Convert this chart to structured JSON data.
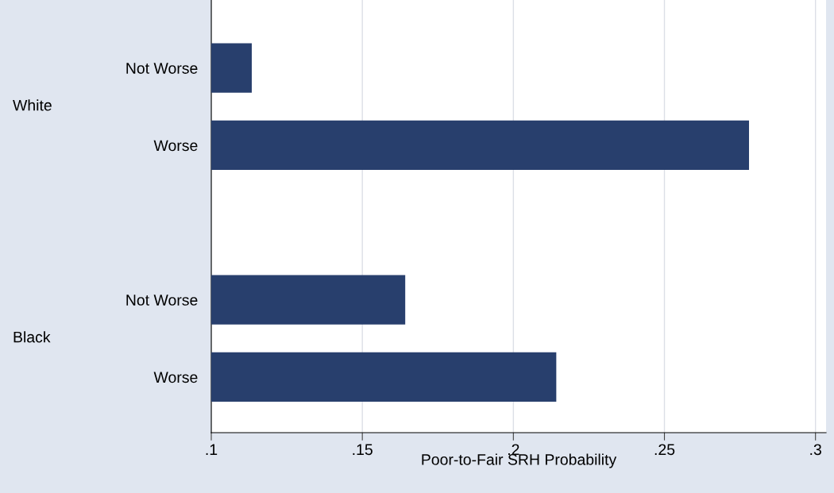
{
  "chart_data": {
    "type": "bar",
    "orientation": "horizontal",
    "categories": [
      "Not Worse",
      "Worse",
      "Not Worse",
      "Worse"
    ],
    "values": [
      0.1134,
      0.278,
      0.1642,
      0.2142
    ],
    "color": "#283f6d",
    "xlabel": "Poor-to-Fair SRH Probability",
    "xlim": [
      0.1,
      0.3035
    ],
    "xticks": [
      {
        "value": 0.1,
        "label": ".1"
      },
      {
        "value": 0.15,
        "label": ".15"
      },
      {
        "value": 0.2,
        "label": ".2"
      },
      {
        "value": 0.25,
        "label": ".25"
      },
      {
        "value": 0.3,
        "label": ".3"
      }
    ],
    "annotations": [
      "White",
      "Black"
    ],
    "grid": "x"
  }
}
